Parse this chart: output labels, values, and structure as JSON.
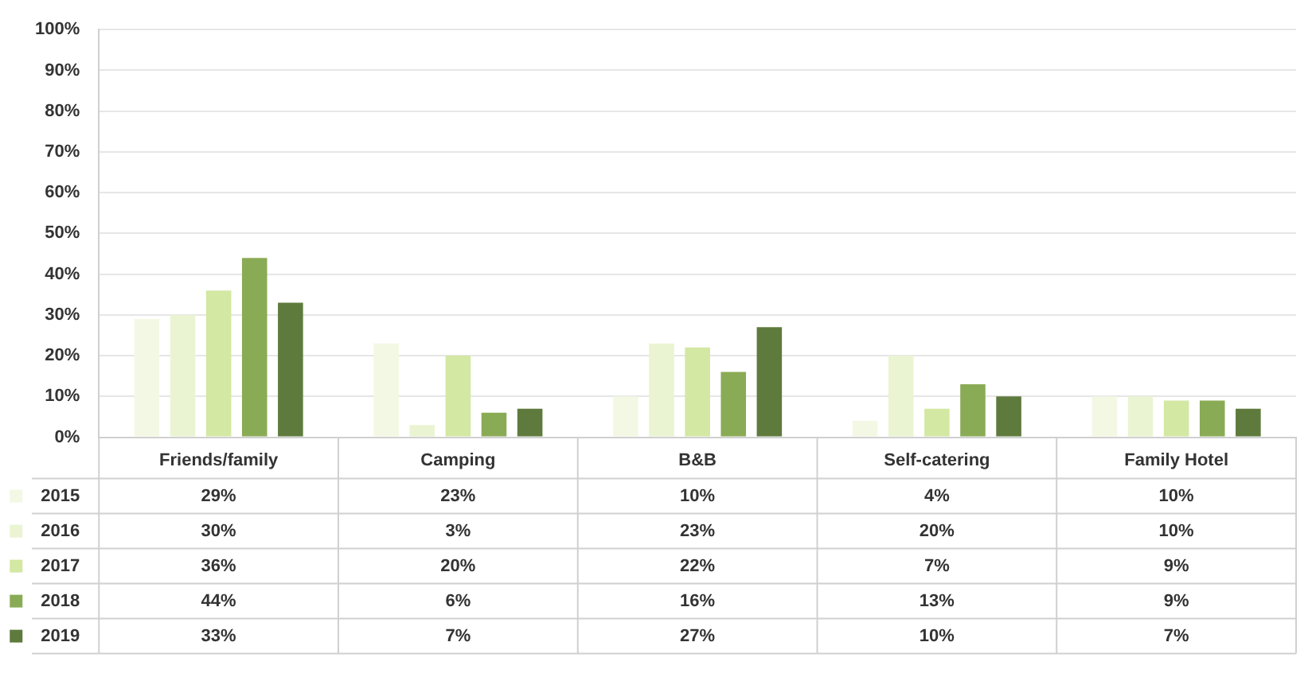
{
  "chart_data": {
    "type": "bar",
    "categories": [
      "Friends/family",
      "Camping",
      "B&B",
      "Self-catering",
      "Family Hotel"
    ],
    "series": [
      {
        "name": "2015",
        "color": "#f3f8e4",
        "values": [
          29,
          23,
          10,
          4,
          10
        ],
        "value_labels": [
          "29%",
          "23%",
          "10%",
          "4%",
          "10%"
        ]
      },
      {
        "name": "2016",
        "color": "#eaf4d2",
        "values": [
          30,
          3,
          23,
          20,
          10
        ],
        "value_labels": [
          "30%",
          "3%",
          "23%",
          "20%",
          "10%"
        ]
      },
      {
        "name": "2017",
        "color": "#d3e8a3",
        "values": [
          36,
          20,
          22,
          7,
          9
        ],
        "value_labels": [
          "36%",
          "20%",
          "22%",
          "7%",
          "9%"
        ]
      },
      {
        "name": "2018",
        "color": "#8aab55",
        "values": [
          44,
          6,
          16,
          13,
          9
        ],
        "value_labels": [
          "44%",
          "6%",
          "16%",
          "13%",
          "9%"
        ]
      },
      {
        "name": "2019",
        "color": "#5f7a3d",
        "values": [
          33,
          7,
          27,
          10,
          7
        ],
        "value_labels": [
          "33%",
          "7%",
          "27%",
          "10%",
          "7%"
        ]
      }
    ],
    "ylim": [
      0,
      100
    ],
    "yticks": [
      {
        "value": 0,
        "label": "0%"
      },
      {
        "value": 10,
        "label": "10%"
      },
      {
        "value": 20,
        "label": "20%"
      },
      {
        "value": 30,
        "label": "30%"
      },
      {
        "value": 40,
        "label": "40%"
      },
      {
        "value": 50,
        "label": "50%"
      },
      {
        "value": 60,
        "label": "60%"
      },
      {
        "value": 70,
        "label": "70%"
      },
      {
        "value": 80,
        "label": "80%"
      },
      {
        "value": 90,
        "label": "90%"
      },
      {
        "value": 100,
        "label": "100%"
      }
    ],
    "grid": "y",
    "legend": "bottom"
  }
}
